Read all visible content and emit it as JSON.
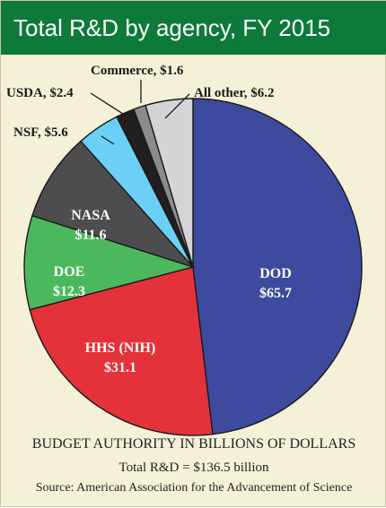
{
  "title": "Total R&D by agency, FY 2015",
  "subtitle": "BUDGET AUTHORITY IN BILLIONS OF DOLLARS",
  "total_note": "Total R&D = $136.5 billion",
  "source": "Source: American Association for the Advancement of Science",
  "chart_data": {
    "type": "pie",
    "title": "Total R&D by agency, FY 2015",
    "unit": "billions of dollars",
    "slices": [
      {
        "name": "DOD",
        "value": 65.7,
        "color": "#3d4a9e",
        "label": "DOD",
        "value_label": "$65.7"
      },
      {
        "name": "HHS (NIH)",
        "value": 31.1,
        "color": "#e4323b",
        "label": "HHS (NIH)",
        "value_label": "$31.1"
      },
      {
        "name": "DOE",
        "value": 12.3,
        "color": "#4cb85e",
        "label": "DOE",
        "value_label": "$12.3"
      },
      {
        "name": "NASA",
        "value": 11.6,
        "color": "#4d4d4f",
        "label": "NASA",
        "value_label": "$11.6"
      },
      {
        "name": "NSF",
        "value": 5.6,
        "color": "#6ccff6",
        "label": "NSF, $5.6"
      },
      {
        "name": "USDA",
        "value": 2.4,
        "color": "#231f20",
        "label": "USDA, $2.4"
      },
      {
        "name": "Commerce",
        "value": 1.6,
        "color": "#8c8c8c",
        "label": "Commerce, $1.6"
      },
      {
        "name": "All other",
        "value": 6.2,
        "color": "#d4d4d6",
        "label": "All other, $6.2"
      }
    ]
  }
}
